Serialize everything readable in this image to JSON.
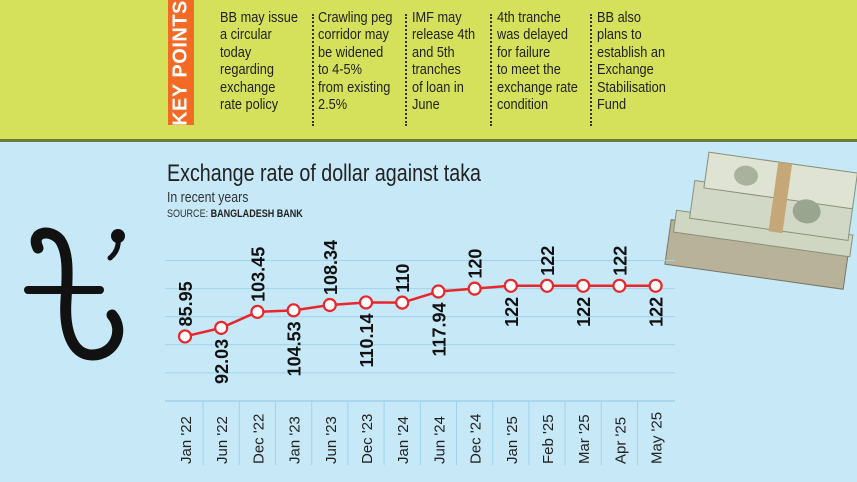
{
  "key_points": {
    "tag": "KEY POINTS",
    "items": [
      "BB may issue\na circular\ntoday\nregarding\nexchange\nrate policy",
      "Crawling peg\ncorridor may\nbe widened\nto 4-5%\nfrom existing\n2.5%",
      "IMF may\nrelease 4th\nand 5th\ntranches\nof loan in\nJune",
      "4th tranche\nwas delayed\nfor failure\nto meet the\nexchange rate\ncondition",
      "BB also\nplans to\nestablish an\nExchange\nStabilisation\nFund"
    ]
  },
  "colors": {
    "top_band": "#d5e15a",
    "tag": "#f26a24",
    "background": "#c6e8f7",
    "line": "#e8262c"
  },
  "icons": [
    "taka-symbol-icon",
    "money-stack-image"
  ],
  "chart_data": {
    "type": "line",
    "title": "Exchange rate of dollar against taka",
    "subtitle": "In recent years",
    "source_label": "SOURCE:",
    "source": "BANGLADESH BANK",
    "categories": [
      "Jan '22",
      "Jun '22",
      "Dec '22",
      "Jan '23",
      "Jun '23",
      "Dec '23",
      "Jan '24",
      "Jun '24",
      "Dec '24",
      "Jan '25",
      "Feb '25",
      "Mar '25",
      "Apr '25",
      "May '25"
    ],
    "values": [
      85.95,
      92.03,
      103.45,
      104.53,
      108.34,
      110.14,
      110,
      117.94,
      120,
      122,
      122,
      122,
      122,
      122
    ],
    "data_labels": [
      "85.95",
      "92.03",
      "103.45",
      "104.53",
      "108.34",
      "110.14",
      "110",
      "117.94",
      "120",
      "122",
      "122",
      "122",
      "122",
      "122"
    ],
    "ylim": [
      40,
      140
    ],
    "grid": true,
    "gridlines": [
      60,
      80,
      100,
      120,
      140
    ]
  }
}
